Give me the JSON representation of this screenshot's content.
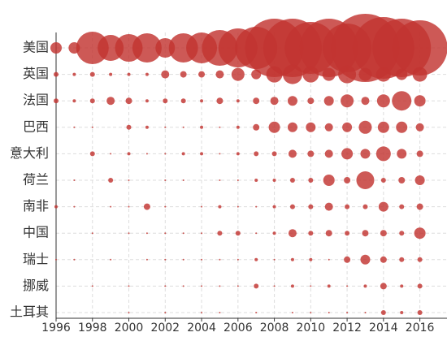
{
  "chart_data": {
    "type": "bubble",
    "categories": [
      "美国",
      "英国",
      "法国",
      "巴西",
      "意大利",
      "荷兰",
      "南非",
      "中国",
      "瑞士",
      "挪威",
      "土耳其"
    ],
    "x": [
      1996,
      1997,
      1998,
      1999,
      2000,
      2001,
      2002,
      2003,
      2004,
      2005,
      2006,
      2007,
      2008,
      2009,
      2010,
      2011,
      2012,
      2013,
      2014,
      2015,
      2016
    ],
    "values": [
      [
        49,
        49,
        400,
        256,
        289,
        324,
        144,
        324,
        361,
        484,
        576,
        676,
        1296,
        1296,
        1024,
        1296,
        900,
        1764,
        1444,
        1296,
        1156
      ],
      [
        9,
        4,
        9,
        4,
        4,
        4,
        25,
        16,
        16,
        25,
        64,
        36,
        100,
        144,
        100,
        64,
        121,
        64,
        81,
        49,
        81
      ],
      [
        9,
        4,
        9,
        25,
        16,
        4,
        9,
        9,
        4,
        16,
        4,
        16,
        25,
        36,
        16,
        36,
        64,
        25,
        64,
        144,
        49
      ],
      [
        0,
        1,
        1,
        0,
        9,
        4,
        1,
        1,
        4,
        1,
        4,
        16,
        49,
        36,
        36,
        25,
        36,
        64,
        49,
        49,
        25
      ],
      [
        0,
        0,
        9,
        1,
        4,
        1,
        1,
        4,
        4,
        1,
        4,
        9,
        9,
        25,
        16,
        25,
        49,
        36,
        81,
        36,
        16
      ],
      [
        0,
        1,
        0,
        9,
        1,
        0,
        1,
        1,
        0,
        1,
        1,
        4,
        4,
        9,
        9,
        49,
        16,
        121,
        9,
        16,
        36
      ],
      [
        4,
        1,
        0,
        1,
        1,
        16,
        1,
        0,
        1,
        4,
        1,
        1,
        4,
        9,
        9,
        25,
        9,
        9,
        36,
        9,
        16
      ],
      [
        0,
        0,
        1,
        0,
        1,
        1,
        1,
        1,
        1,
        9,
        9,
        1,
        4,
        25,
        9,
        16,
        9,
        16,
        16,
        9,
        49
      ],
      [
        1,
        1,
        0,
        1,
        0,
        1,
        1,
        1,
        1,
        1,
        1,
        4,
        1,
        4,
        4,
        1,
        16,
        36,
        16,
        9,
        9
      ],
      [
        0,
        0,
        1,
        0,
        1,
        0,
        1,
        1,
        1,
        1,
        1,
        9,
        1,
        4,
        1,
        4,
        1,
        4,
        16,
        4,
        9
      ],
      [
        0,
        0,
        0,
        0,
        1,
        0,
        1,
        0,
        1,
        1,
        0,
        1,
        0,
        1,
        1,
        1,
        1,
        1,
        9,
        4,
        9
      ]
    ],
    "color": "#c23531",
    "xlim": [
      1996,
      2017
    ],
    "xticks": [
      1996,
      1998,
      2000,
      2002,
      2004,
      2006,
      2008,
      2010,
      2012,
      2014,
      2016
    ],
    "grid": true
  }
}
